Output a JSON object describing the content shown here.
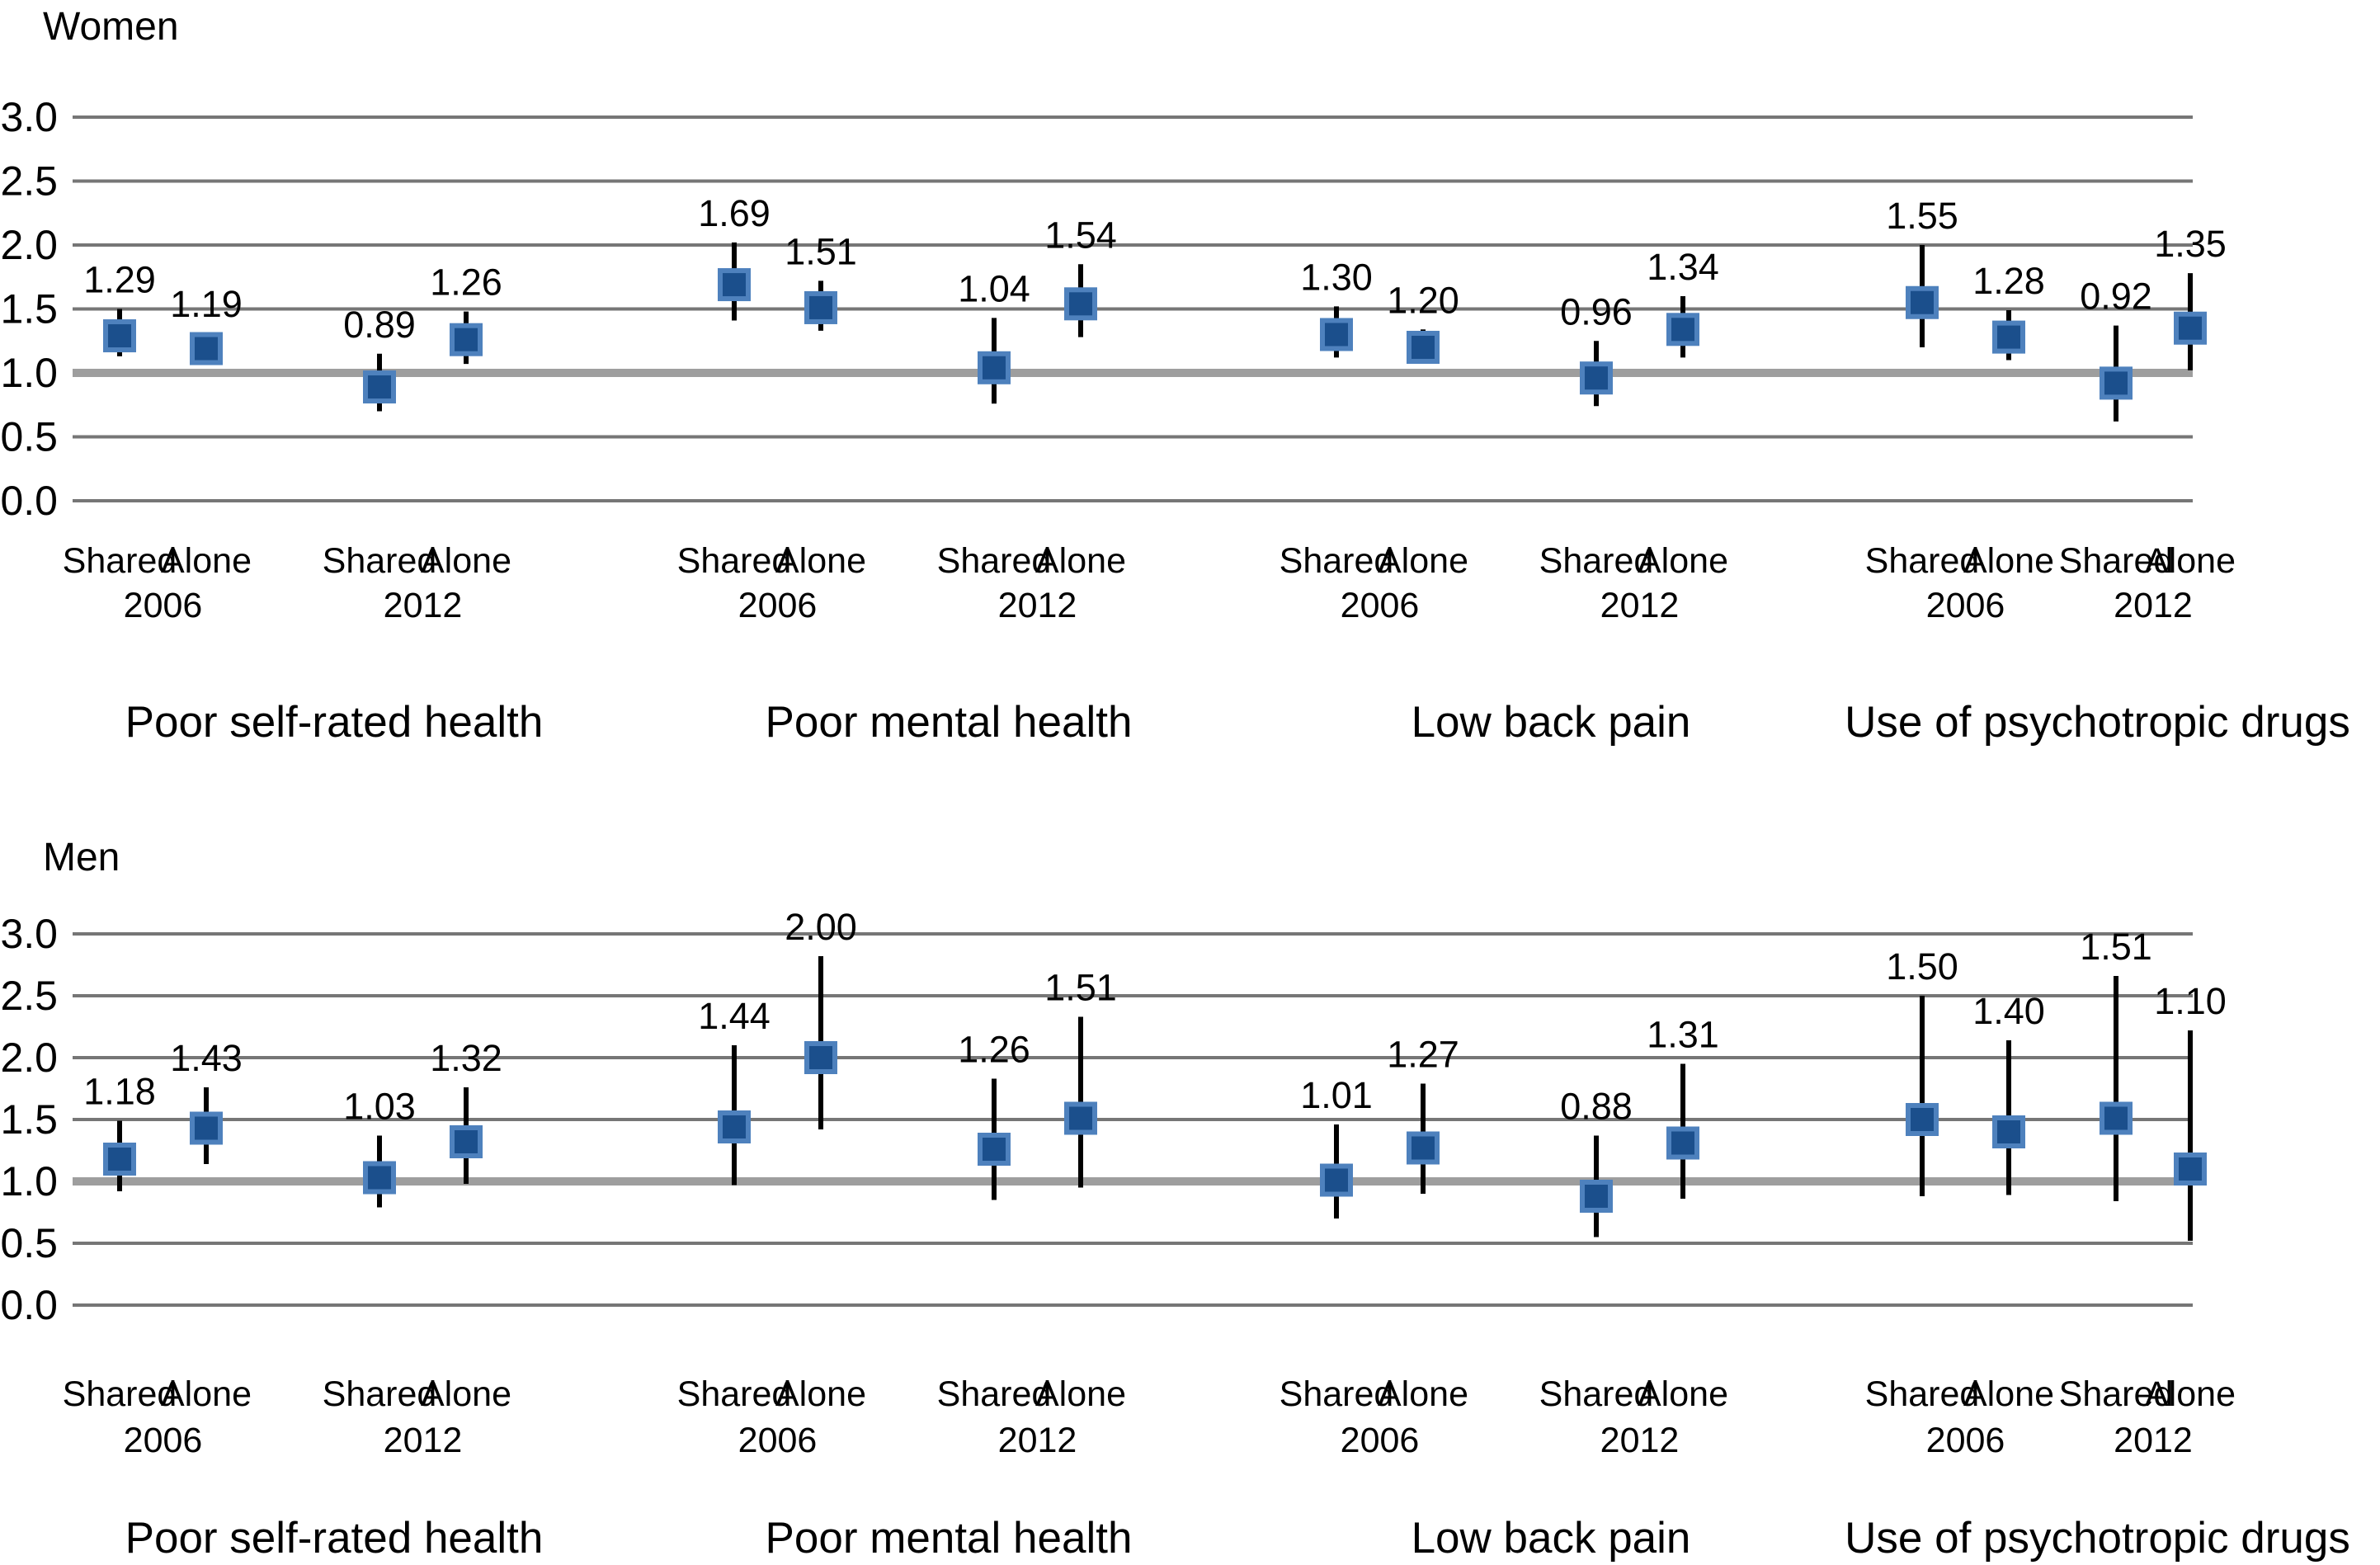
{
  "figure": {
    "background": "#FFFFFF",
    "text_color": "#000000",
    "marker_shape": "square",
    "marker_fill": "#1B4F8C",
    "marker_stroke": "#4E81BD",
    "error_bar_color": "#000000",
    "gridline_color": "#767676",
    "reference_line_color": "#9E9E9E"
  },
  "chart_data": [
    {
      "panel": "Women",
      "type": "scatter",
      "note": "point estimates (odds ratios) with 95% CI whiskers",
      "ylim": [
        0.0,
        3.0
      ],
      "y_ticks": [
        3.0,
        2.5,
        2.0,
        1.5,
        1.0,
        0.5,
        0.0
      ],
      "y_tick_labels": [
        "3.0",
        "2.5",
        "2.0",
        "1.5",
        "1.0",
        "0.5",
        "0.0"
      ],
      "reference_line": 1.0,
      "grid": true,
      "legend": "none",
      "groups": [
        {
          "label": "Poor self-rated health",
          "clusters": [
            {
              "year": "2006",
              "points": [
                {
                  "category": "Shared",
                  "value": 1.29,
                  "display": "1.29",
                  "ci": [
                    1.13,
                    1.5
                  ]
                },
                {
                  "category": "Alone",
                  "value": 1.19,
                  "display": "1.19",
                  "ci": [
                    1.08,
                    1.31
                  ]
                }
              ]
            },
            {
              "year": "2012",
              "points": [
                {
                  "category": "Shared",
                  "value": 0.89,
                  "display": "0.89",
                  "ci": [
                    0.7,
                    1.15
                  ]
                },
                {
                  "category": "Alone",
                  "value": 1.26,
                  "display": "1.26",
                  "ci": [
                    1.07,
                    1.48
                  ]
                }
              ]
            }
          ]
        },
        {
          "label": "Poor mental health",
          "clusters": [
            {
              "year": "2006",
              "points": [
                {
                  "category": "Shared",
                  "value": 1.69,
                  "display": "1.69",
                  "ci": [
                    1.41,
                    2.02
                  ]
                },
                {
                  "category": "Alone",
                  "value": 1.51,
                  "display": "1.51",
                  "ci": [
                    1.33,
                    1.72
                  ]
                }
              ]
            },
            {
              "year": "2012",
              "points": [
                {
                  "category": "Shared",
                  "value": 1.04,
                  "display": "1.04",
                  "ci": [
                    0.76,
                    1.43
                  ]
                },
                {
                  "category": "Alone",
                  "value": 1.54,
                  "display": "1.54",
                  "ci": [
                    1.28,
                    1.85
                  ]
                }
              ]
            }
          ]
        },
        {
          "label": "Low back pain",
          "clusters": [
            {
              "year": "2006",
              "points": [
                {
                  "category": "Shared",
                  "value": 1.3,
                  "display": "1.30",
                  "ci": [
                    1.12,
                    1.52
                  ]
                },
                {
                  "category": "Alone",
                  "value": 1.2,
                  "display": "1.20",
                  "ci": [
                    1.08,
                    1.34
                  ]
                }
              ]
            },
            {
              "year": "2012",
              "points": [
                {
                  "category": "Shared",
                  "value": 0.96,
                  "display": "0.96",
                  "ci": [
                    0.74,
                    1.25
                  ]
                },
                {
                  "category": "Alone",
                  "value": 1.34,
                  "display": "1.34",
                  "ci": [
                    1.12,
                    1.6
                  ]
                }
              ]
            }
          ]
        },
        {
          "label": "Use of psychotropic drugs",
          "clusters": [
            {
              "year": "2006",
              "points": [
                {
                  "category": "Shared",
                  "value": 1.55,
                  "display": "1.55",
                  "ci": [
                    1.2,
                    2.0
                  ]
                },
                {
                  "category": "Alone",
                  "value": 1.28,
                  "display": "1.28",
                  "ci": [
                    1.1,
                    1.49
                  ]
                }
              ]
            },
            {
              "year": "2012",
              "points": [
                {
                  "category": "Shared",
                  "value": 0.92,
                  "display": "0.92",
                  "ci": [
                    0.62,
                    1.37
                  ]
                },
                {
                  "category": "Alone",
                  "value": 1.35,
                  "display": "1.35",
                  "ci": [
                    1.02,
                    1.78
                  ]
                }
              ]
            }
          ]
        }
      ]
    },
    {
      "panel": "Men",
      "type": "scatter",
      "note": "point estimates (odds ratios) with 95% CI whiskers",
      "ylim": [
        0.0,
        3.0
      ],
      "y_ticks": [
        3.0,
        2.5,
        2.0,
        1.5,
        1.0,
        0.5,
        0.0
      ],
      "y_tick_labels": [
        "3.0",
        "2.5",
        "2.0",
        "1.5",
        "1.0",
        "0.5",
        "0.0"
      ],
      "reference_line": 1.0,
      "grid": true,
      "legend": "none",
      "groups": [
        {
          "label": "Poor self-rated health",
          "clusters": [
            {
              "year": "2006",
              "points": [
                {
                  "category": "Shared",
                  "value": 1.18,
                  "display": "1.18",
                  "ci": [
                    0.92,
                    1.49
                  ]
                },
                {
                  "category": "Alone",
                  "value": 1.43,
                  "display": "1.43",
                  "ci": [
                    1.14,
                    1.76
                  ]
                }
              ]
            },
            {
              "year": "2012",
              "points": [
                {
                  "category": "Shared",
                  "value": 1.03,
                  "display": "1.03",
                  "ci": [
                    0.79,
                    1.37
                  ]
                },
                {
                  "category": "Alone",
                  "value": 1.32,
                  "display": "1.32",
                  "ci": [
                    0.98,
                    1.76
                  ]
                }
              ]
            }
          ]
        },
        {
          "label": "Poor mental health",
          "clusters": [
            {
              "year": "2006",
              "points": [
                {
                  "category": "Shared",
                  "value": 1.44,
                  "display": "1.44",
                  "ci": [
                    0.97,
                    2.1
                  ]
                },
                {
                  "category": "Alone",
                  "value": 2.0,
                  "display": "2.00",
                  "ci": [
                    1.42,
                    2.82
                  ]
                }
              ]
            },
            {
              "year": "2012",
              "points": [
                {
                  "category": "Shared",
                  "value": 1.26,
                  "display": "1.26",
                  "ci": [
                    0.85,
                    1.83
                  ]
                },
                {
                  "category": "Alone",
                  "value": 1.51,
                  "display": "1.51",
                  "ci": [
                    0.95,
                    2.33
                  ]
                }
              ]
            }
          ]
        },
        {
          "label": "Low back pain",
          "clusters": [
            {
              "year": "2006",
              "points": [
                {
                  "category": "Shared",
                  "value": 1.01,
                  "display": "1.01",
                  "ci": [
                    0.7,
                    1.46
                  ]
                },
                {
                  "category": "Alone",
                  "value": 1.27,
                  "display": "1.27",
                  "ci": [
                    0.9,
                    1.79
                  ]
                }
              ]
            },
            {
              "year": "2012",
              "points": [
                {
                  "category": "Shared",
                  "value": 0.88,
                  "display": "0.88",
                  "ci": [
                    0.55,
                    1.37
                  ]
                },
                {
                  "category": "Alone",
                  "value": 1.31,
                  "display": "1.31",
                  "ci": [
                    0.86,
                    1.95
                  ]
                }
              ]
            }
          ]
        },
        {
          "label": "Use of psychotropic drugs",
          "clusters": [
            {
              "year": "2006",
              "points": [
                {
                  "category": "Shared",
                  "value": 1.5,
                  "display": "1.50",
                  "ci": [
                    0.88,
                    2.5
                  ]
                },
                {
                  "category": "Alone",
                  "value": 1.4,
                  "display": "1.40",
                  "ci": [
                    0.89,
                    2.14
                  ]
                }
              ]
            },
            {
              "year": "2012",
              "points": [
                {
                  "category": "Shared",
                  "value": 1.51,
                  "display": "1.51",
                  "ci": [
                    0.84,
                    2.66
                  ]
                },
                {
                  "category": "Alone",
                  "value": 1.1,
                  "display": "1.10",
                  "ci": [
                    0.52,
                    2.22
                  ]
                }
              ]
            }
          ]
        }
      ]
    }
  ]
}
